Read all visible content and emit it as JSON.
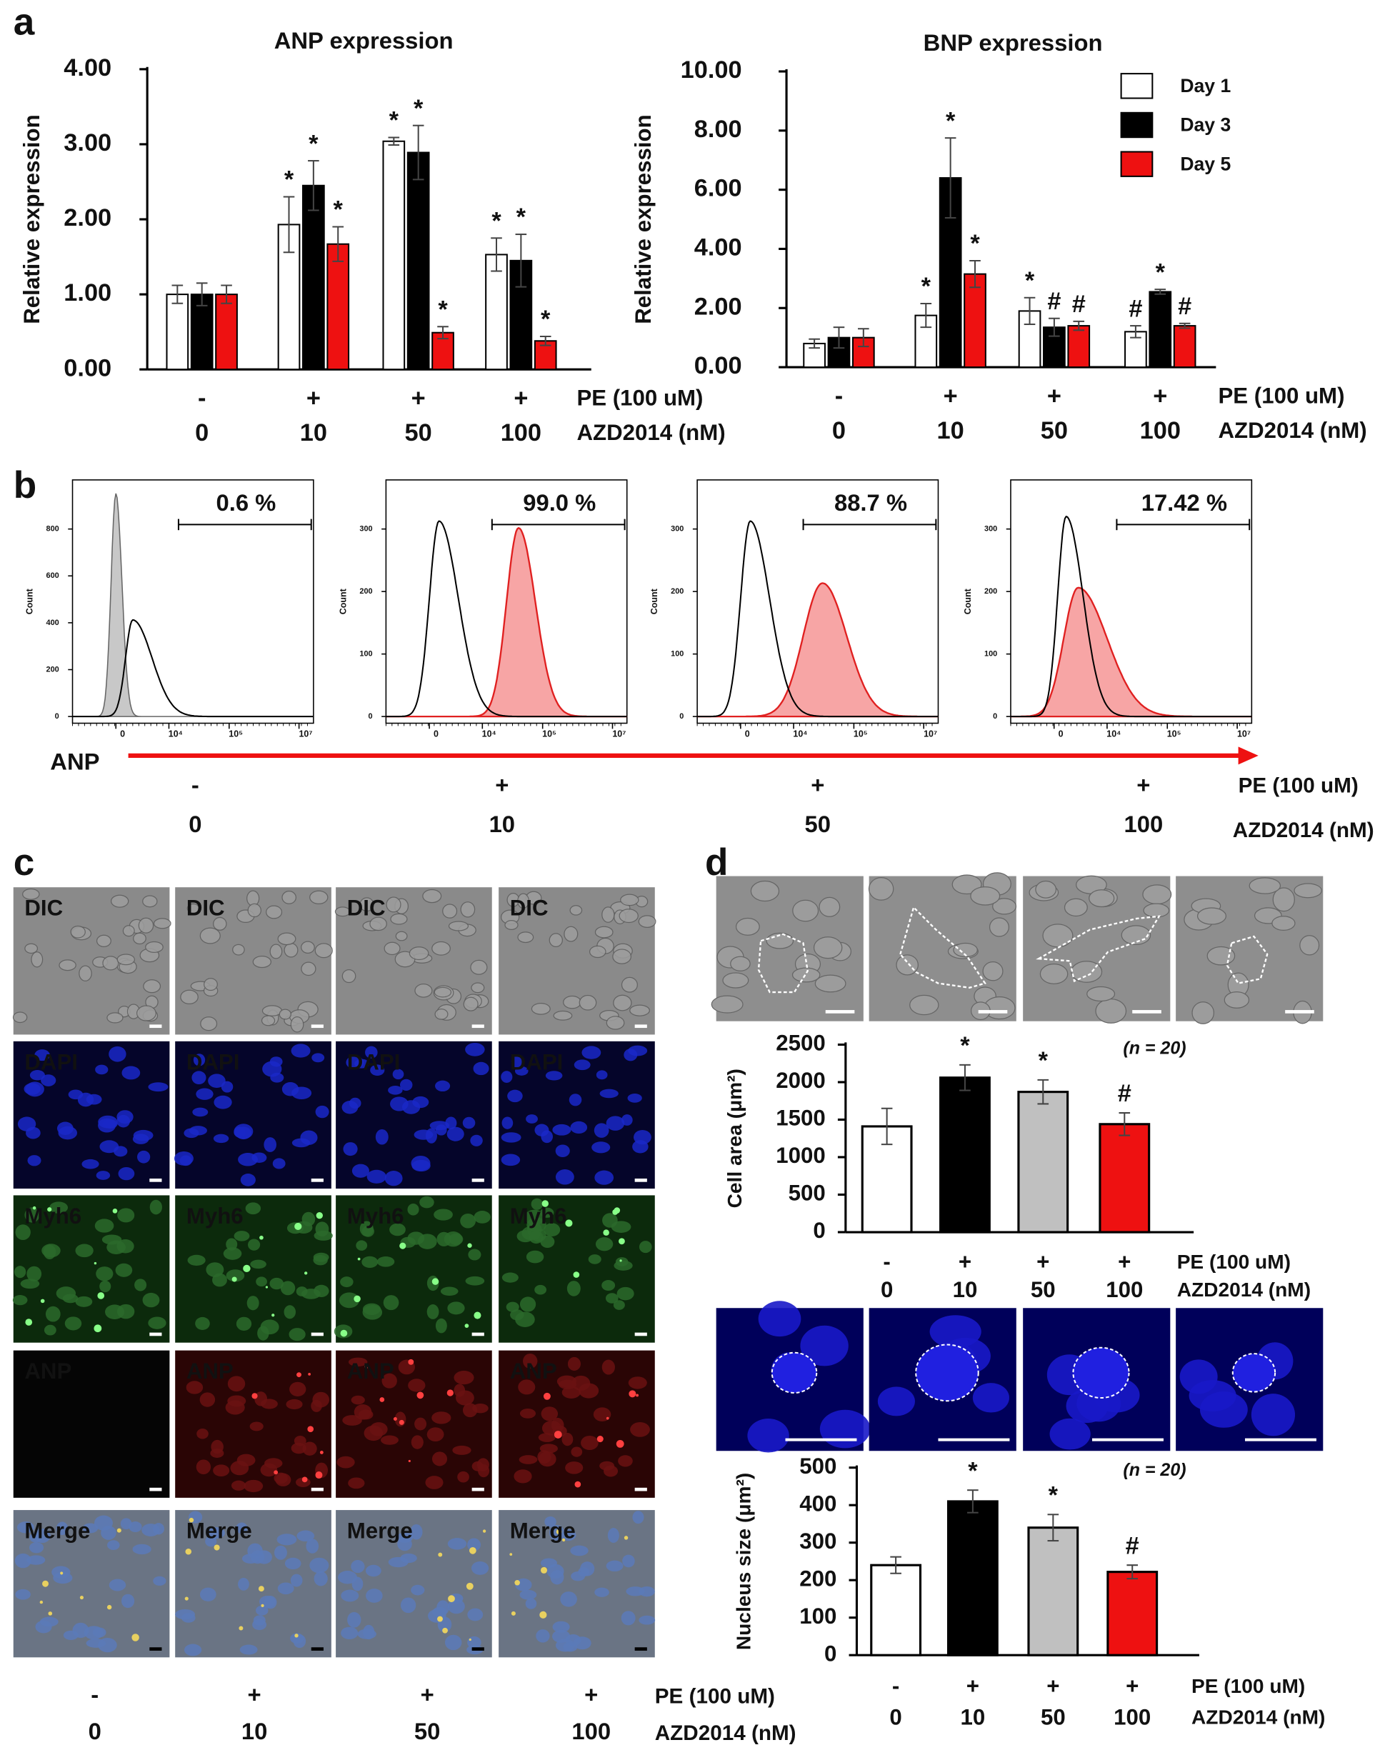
{
  "panel_labels": [
    "a",
    "b",
    "c",
    "d"
  ],
  "chart_data": [
    {
      "type": "bar",
      "title": "ANP expression",
      "ylabel": "Relative expression",
      "categories": [
        "0",
        "10",
        "50",
        "100"
      ],
      "pe": [
        "-",
        "+",
        "+",
        "+"
      ],
      "row_labels": [
        "PE (100 uM)",
        "AZD2014 (nM)"
      ],
      "ylim": [
        0,
        4
      ],
      "yticks": [
        {
          "value": 0,
          "label": "0.00"
        },
        {
          "value": 1,
          "label": "1.00"
        },
        {
          "value": 2,
          "label": "2.00"
        },
        {
          "value": 3,
          "label": "3.00"
        },
        {
          "value": 4,
          "label": "4.00"
        }
      ],
      "series": [
        {
          "color": "#ffffff",
          "values": [
            1.0,
            1.93,
            3.04,
            1.53
          ],
          "errors": [
            0.12,
            0.37,
            0.05,
            0.22
          ],
          "markers": [
            null,
            "*",
            "*",
            "*"
          ]
        },
        {
          "color": "#000000",
          "values": [
            1.0,
            2.45,
            2.89,
            1.45
          ],
          "errors": [
            0.15,
            0.33,
            0.36,
            0.35
          ],
          "markers": [
            null,
            "*",
            "*",
            "*"
          ]
        },
        {
          "color": "#ee1111",
          "values": [
            1.0,
            1.67,
            0.49,
            0.38
          ],
          "errors": [
            0.12,
            0.23,
            0.08,
            0.06
          ],
          "markers": [
            null,
            "*",
            "*",
            "*"
          ]
        }
      ]
    },
    {
      "type": "bar",
      "title": "BNP expression",
      "ylabel": "Relative expression",
      "categories": [
        "0",
        "10",
        "50",
        "100"
      ],
      "pe": [
        "-",
        "+",
        "+",
        "+"
      ],
      "row_labels": [
        "PE (100 uM)",
        "AZD2014 (nM)"
      ],
      "ylim": [
        0,
        10
      ],
      "yticks": [
        {
          "value": 0,
          "label": "0.00"
        },
        {
          "value": 2,
          "label": "2.00"
        },
        {
          "value": 4,
          "label": "4.00"
        },
        {
          "value": 6,
          "label": "6.00"
        },
        {
          "value": 8,
          "label": "8.00"
        },
        {
          "value": 10,
          "label": "10.00"
        }
      ],
      "legend": "top-right",
      "series": [
        {
          "name": "Day 1",
          "color": "#ffffff",
          "values": [
            0.8,
            1.75,
            1.9,
            1.2
          ],
          "errors": [
            0.15,
            0.4,
            0.45,
            0.2
          ],
          "markers": [
            null,
            "*",
            "*",
            "#"
          ]
        },
        {
          "name": "Day 3",
          "color": "#000000",
          "values": [
            1.0,
            6.4,
            1.35,
            2.55
          ],
          "errors": [
            0.35,
            1.35,
            0.3,
            0.08
          ],
          "markers": [
            null,
            "*",
            "#",
            "*"
          ]
        },
        {
          "name": "Day 5",
          "color": "#ee1111",
          "values": [
            1.0,
            3.15,
            1.4,
            1.4
          ],
          "errors": [
            0.3,
            0.45,
            0.15,
            0.08
          ],
          "markers": [
            null,
            "*",
            "#",
            "#"
          ]
        }
      ]
    },
    {
      "type": "bar",
      "ylabel": "Cell area  (μm²)",
      "note": "(n = 20)",
      "categories": [
        "0",
        "10",
        "50",
        "100"
      ],
      "pe": [
        "-",
        "+",
        "+",
        "+"
      ],
      "row_labels": [
        "PE (100 uM)",
        "AZD2014 (nM)"
      ],
      "ylim": [
        0,
        2500
      ],
      "yticks": [
        0,
        500,
        1000,
        1500,
        2000,
        2500
      ],
      "values": [
        1410,
        2060,
        1870,
        1440
      ],
      "errors": [
        240,
        170,
        160,
        150
      ],
      "colors": [
        "#ffffff",
        "#000000",
        "#c0c0c0",
        "#ee1111"
      ],
      "markers": [
        null,
        "*",
        "*",
        "#"
      ]
    },
    {
      "type": "bar",
      "ylabel": "Nucleus size  (μm²)",
      "note": "(n = 20)",
      "categories": [
        "0",
        "10",
        "50",
        "100"
      ],
      "pe": [
        "-",
        "+",
        "+",
        "+"
      ],
      "row_labels": [
        "PE (100 uM)",
        "AZD2014 (nM)"
      ],
      "ylim": [
        0,
        500
      ],
      "yticks": [
        0,
        100,
        200,
        300,
        400,
        500
      ],
      "values": [
        240,
        410,
        340,
        222
      ],
      "errors": [
        22,
        30,
        35,
        18
      ],
      "colors": [
        "#ffffff",
        "#000000",
        "#c0c0c0",
        "#ee1111"
      ],
      "markers": [
        null,
        "*",
        "*",
        "#"
      ]
    }
  ],
  "flow": {
    "ylabel": "Count",
    "xticks": [
      "0",
      "10⁴",
      "10⁵",
      "10⁷"
    ],
    "axis_label": "ANP",
    "panels": [
      {
        "yticks": [
          "0",
          "200",
          "400",
          "600",
          "800"
        ],
        "gate": "0.6 %"
      },
      {
        "yticks": [
          "0",
          "100",
          "200",
          "300"
        ],
        "gate": "99.0 %"
      },
      {
        "yticks": [
          "0",
          "100",
          "200",
          "300"
        ],
        "gate": "88.7 %"
      },
      {
        "yticks": [
          "0",
          "100",
          "200",
          "300"
        ],
        "gate": "17.42 %"
      }
    ],
    "pe": [
      "-",
      "+",
      "+",
      "+"
    ],
    "azd": [
      "0",
      "10",
      "50",
      "100"
    ],
    "row_labels": [
      "PE (100 uM)",
      "AZD2014 (nM)"
    ]
  },
  "microscopy": {
    "rows": [
      "DIC",
      "DAPI",
      "Myh6",
      "ANP",
      "Merge"
    ],
    "pe": [
      "-",
      "+",
      "+",
      "+"
    ],
    "azd": [
      "0",
      "10",
      "50",
      "100"
    ],
    "row_labels": [
      "PE (100 uM)",
      "AZD2014 (nM)"
    ]
  }
}
